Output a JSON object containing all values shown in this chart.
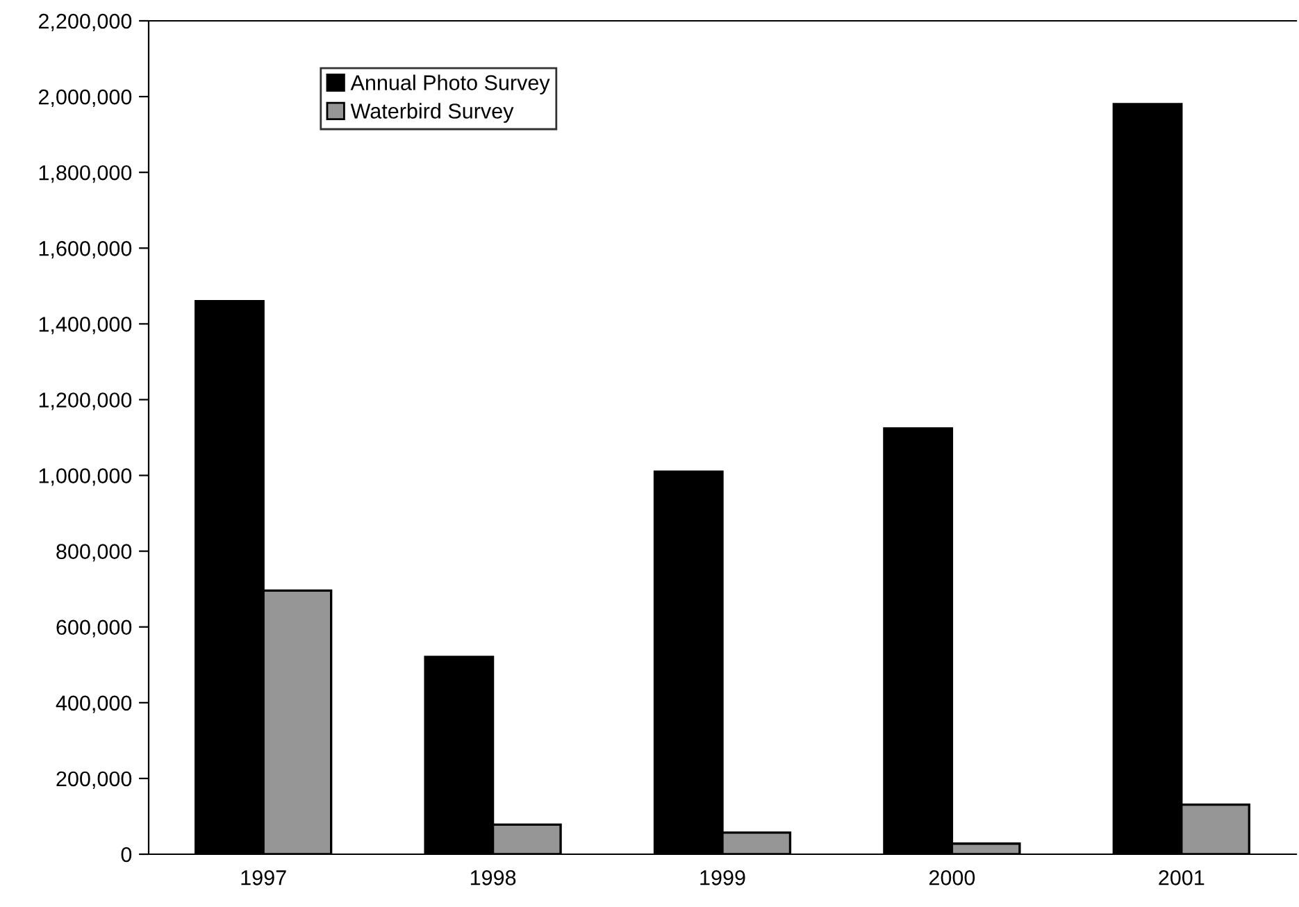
{
  "chart_data": {
    "type": "bar",
    "categories": [
      "1997",
      "1998",
      "1999",
      "2000",
      "2001"
    ],
    "series": [
      {
        "name": "Annual Photo Survey",
        "color": "#000000",
        "values": [
          1460000,
          521000,
          1010000,
          1124000,
          1980000
        ]
      },
      {
        "name": "Waterbird Survey",
        "color": "#969696",
        "values": [
          696000,
          78000,
          57000,
          28000,
          131000
        ]
      }
    ],
    "ylim": [
      0,
      2200000
    ],
    "yticks": [
      {
        "value": 0,
        "label": "0"
      },
      {
        "value": 200000,
        "label": "200,000"
      },
      {
        "value": 400000,
        "label": "400,000"
      },
      {
        "value": 600000,
        "label": "600,000"
      },
      {
        "value": 800000,
        "label": "800,000"
      },
      {
        "value": 1000000,
        "label": "1,000,000"
      },
      {
        "value": 1200000,
        "label": "1,200,000"
      },
      {
        "value": 1400000,
        "label": "1,400,000"
      },
      {
        "value": 1600000,
        "label": "1,600,000"
      },
      {
        "value": 1800000,
        "label": "1,800,000"
      },
      {
        "value": 2000000,
        "label": "2,000,000"
      },
      {
        "value": 2200000,
        "label": "2,200,000"
      }
    ],
    "grid": false,
    "legend": "top left"
  }
}
